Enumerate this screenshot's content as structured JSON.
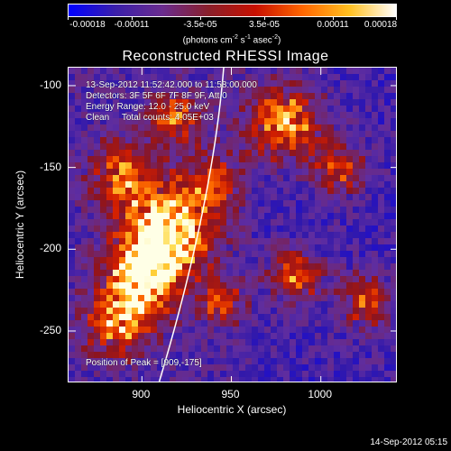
{
  "colorbar": {
    "tick_labels": [
      "-0.00018",
      "-0.00011",
      "-3.5e-05",
      "3.5e-05",
      "0.00011",
      "0.00018"
    ],
    "tick_values": [
      -0.00018,
      -0.00011,
      -3.5e-05,
      3.5e-05,
      0.00011,
      0.00018
    ],
    "range": [
      -0.00018,
      0.00018
    ],
    "units_text": "(photons cm",
    "units_exp1": "-2",
    "units_mid": " s",
    "units_exp2": "-1",
    "units_mid2": " asec",
    "units_exp3": "-2",
    "units_end": ")",
    "colors": [
      "#0000ff",
      "#3a1faa",
      "#6a2c8f",
      "#8a1f2a",
      "#c81000",
      "#ff6600",
      "#ffc020",
      "#ffffff"
    ]
  },
  "title": "Reconstructed RHESSI Image",
  "annotations": {
    "time_range": "13-Sep-2012 11:52:42.000 to 11:58:00.000",
    "detectors": "Detectors: 3F 5F 6F 7F 8F 9F, Att 0",
    "energy": "Energy Range: 12.0 - 25.0 keV",
    "clean": "Clean     Total counts: 4.05E+03",
    "peak": "Position of Peak = [909,-175]"
  },
  "chart_data": {
    "type": "heatmap",
    "title": "Reconstructed RHESSI Image",
    "xlabel": "Heliocentric X (arcsec)",
    "ylabel": "Heliocentric Y (arcsec)",
    "xlim": [
      859,
      1043
    ],
    "ylim": [
      -282,
      -89
    ],
    "x_ticks": [
      900,
      950,
      1000
    ],
    "y_ticks": [
      -100,
      -150,
      -200,
      -250
    ],
    "peak_position": [
      909,
      -175
    ],
    "colorscale_range": [
      -0.00018,
      0.00018
    ],
    "solar_limb_arc": true
  },
  "axes": {
    "xtick_labels": [
      "900",
      "950",
      "1000"
    ],
    "ytick_labels": [
      "-100",
      "-150",
      "-200",
      "-250"
    ]
  },
  "timestamp": "14-Sep-2012 05:15"
}
